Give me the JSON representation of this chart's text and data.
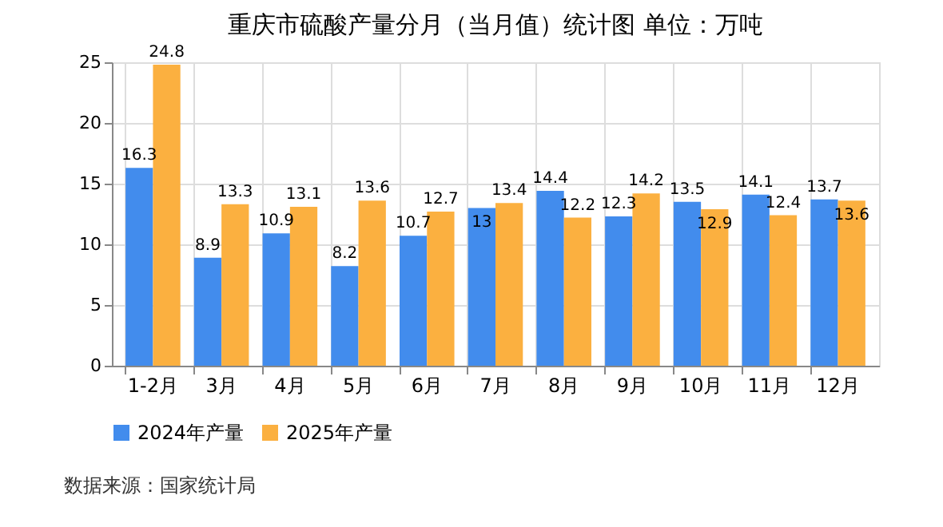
{
  "chart_data": {
    "type": "bar",
    "title": "重庆市硫酸产量分月（当月值）统计图 单位：万吨",
    "categories": [
      "1-2月",
      "3月",
      "4月",
      "5月",
      "6月",
      "7月",
      "8月",
      "9月",
      "10月",
      "11月",
      "12月"
    ],
    "series": [
      {
        "name": "2024年产量",
        "color": "#428ced",
        "values": [
          16.3,
          8.9,
          10.9,
          8.2,
          10.7,
          13,
          14.4,
          12.3,
          13.5,
          14.1,
          13.7
        ]
      },
      {
        "name": "2025年产量",
        "color": "#fbb040",
        "values": [
          24.8,
          13.3,
          13.1,
          13.6,
          12.7,
          13.4,
          12.2,
          14.2,
          12.9,
          12.4,
          13.6
        ]
      }
    ],
    "ylim": [
      0,
      25
    ],
    "yticks": [
      0,
      5,
      10,
      15,
      20,
      25
    ],
    "grid": true,
    "legend": "bottom",
    "data_labels": true,
    "annotations": [
      "数据来源：国家统计局"
    ]
  }
}
